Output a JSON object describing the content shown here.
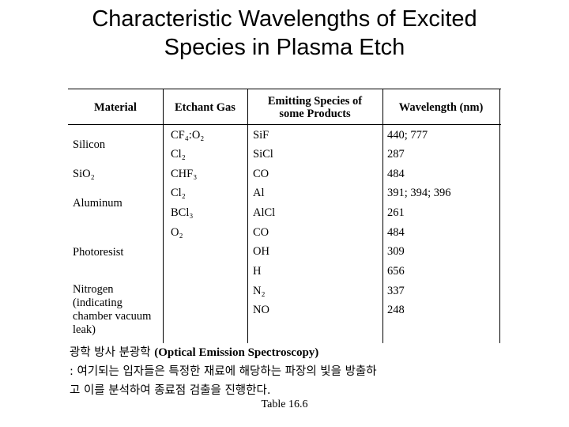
{
  "title": {
    "line1": "Characteristic Wavelengths of Excited",
    "line2": "Species in Plasma Etch"
  },
  "table": {
    "headers": {
      "material": "Material",
      "etchant": "Etchant Gas",
      "species_line1": "Emitting Species of",
      "species_line2": "some Products",
      "wavelength": "Wavelength (nm)"
    },
    "materials": {
      "silicon": "Silicon",
      "sio2": "SiO₂",
      "aluminum": "Aluminum",
      "photoresist": "Photoresist",
      "nitrogen_1": "Nitrogen",
      "nitrogen_2": "(indicating",
      "nitrogen_3": "chamber vacuum",
      "nitrogen_4": "leak)"
    },
    "rows": [
      {
        "gas": "CF₄:O₂",
        "species": "SiF",
        "wavelength": "440; 777"
      },
      {
        "gas": "Cl₂",
        "species": "SiCl",
        "wavelength": "287"
      },
      {
        "gas": "CHF₃",
        "species": "CO",
        "wavelength": "484"
      },
      {
        "gas": "Cl₂",
        "species": "Al",
        "wavelength": "391; 394; 396"
      },
      {
        "gas": "BCl₃",
        "species": "AlCl",
        "wavelength": "261"
      },
      {
        "gas": "O₂",
        "species": "CO",
        "wavelength": "484"
      },
      {
        "gas": "",
        "species": "OH",
        "wavelength": "309"
      },
      {
        "gas": "",
        "species": "H",
        "wavelength": "656"
      },
      {
        "gas": "",
        "species": "N₂",
        "wavelength": "337"
      },
      {
        "gas": "",
        "species": "NO",
        "wavelength": "248"
      }
    ]
  },
  "notes": {
    "line1_korean": "광학 방사 분광학",
    "line1_english": "(Optical Emission Spectroscopy)",
    "line2": ": 여기되는 입자들은 특정한 재료에 해당하는 파장의 빛을 방출하",
    "line3": "고 이를 분석하여 종료점 검출을 진행한다."
  },
  "caption": "Table 16.6"
}
